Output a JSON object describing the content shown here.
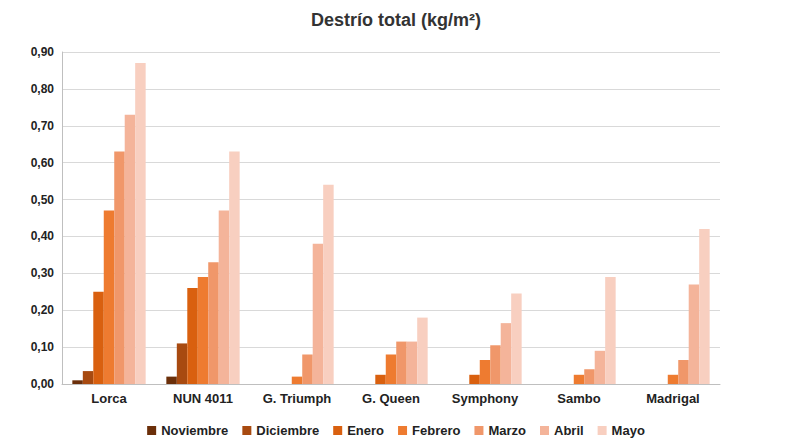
{
  "chart_data": {
    "type": "bar",
    "title": "Destrío total (kg/m²)",
    "categories": [
      "Lorca",
      "NUN 4011",
      "G. Triumph",
      "G. Queen",
      "Symphony",
      "Sambo",
      "Madrigal"
    ],
    "series": [
      {
        "name": "Noviembre",
        "color": "#6b2f0a",
        "values": [
          0.01,
          0.02,
          0,
          0,
          0,
          0,
          0
        ]
      },
      {
        "name": "Diciembre",
        "color": "#a84a10",
        "values": [
          0.035,
          0.11,
          0,
          0,
          0,
          0,
          0
        ]
      },
      {
        "name": "Enero",
        "color": "#d9600f",
        "values": [
          0.25,
          0.26,
          0,
          0.025,
          0.025,
          0,
          0
        ]
      },
      {
        "name": "Febrero",
        "color": "#ee7b30",
        "values": [
          0.47,
          0.29,
          0.02,
          0.08,
          0.065,
          0.025,
          0.025
        ]
      },
      {
        "name": "Marzo",
        "color": "#f0976a",
        "values": [
          0.63,
          0.33,
          0.08,
          0.115,
          0.105,
          0.04,
          0.065
        ]
      },
      {
        "name": "Abril",
        "color": "#f4b49a",
        "values": [
          0.73,
          0.47,
          0.38,
          0.115,
          0.165,
          0.09,
          0.27
        ]
      },
      {
        "name": "Mayo",
        "color": "#f8cfc0",
        "values": [
          0.87,
          0.63,
          0.54,
          0.18,
          0.245,
          0.29,
          0.42
        ]
      }
    ],
    "ylim": [
      0,
      0.9
    ],
    "yticks": [
      {
        "value": 0,
        "label": "0,00"
      },
      {
        "value": 0.1,
        "label": "0,10"
      },
      {
        "value": 0.2,
        "label": "0,20"
      },
      {
        "value": 0.3,
        "label": "0,30"
      },
      {
        "value": 0.4,
        "label": "0,40"
      },
      {
        "value": 0.5,
        "label": "0,50"
      },
      {
        "value": 0.6,
        "label": "0,60"
      },
      {
        "value": 0.7,
        "label": "0,70"
      },
      {
        "value": 0.8,
        "label": "0,80"
      },
      {
        "value": 0.9,
        "label": "0,90"
      }
    ],
    "grid": true,
    "legend": "bottom"
  }
}
